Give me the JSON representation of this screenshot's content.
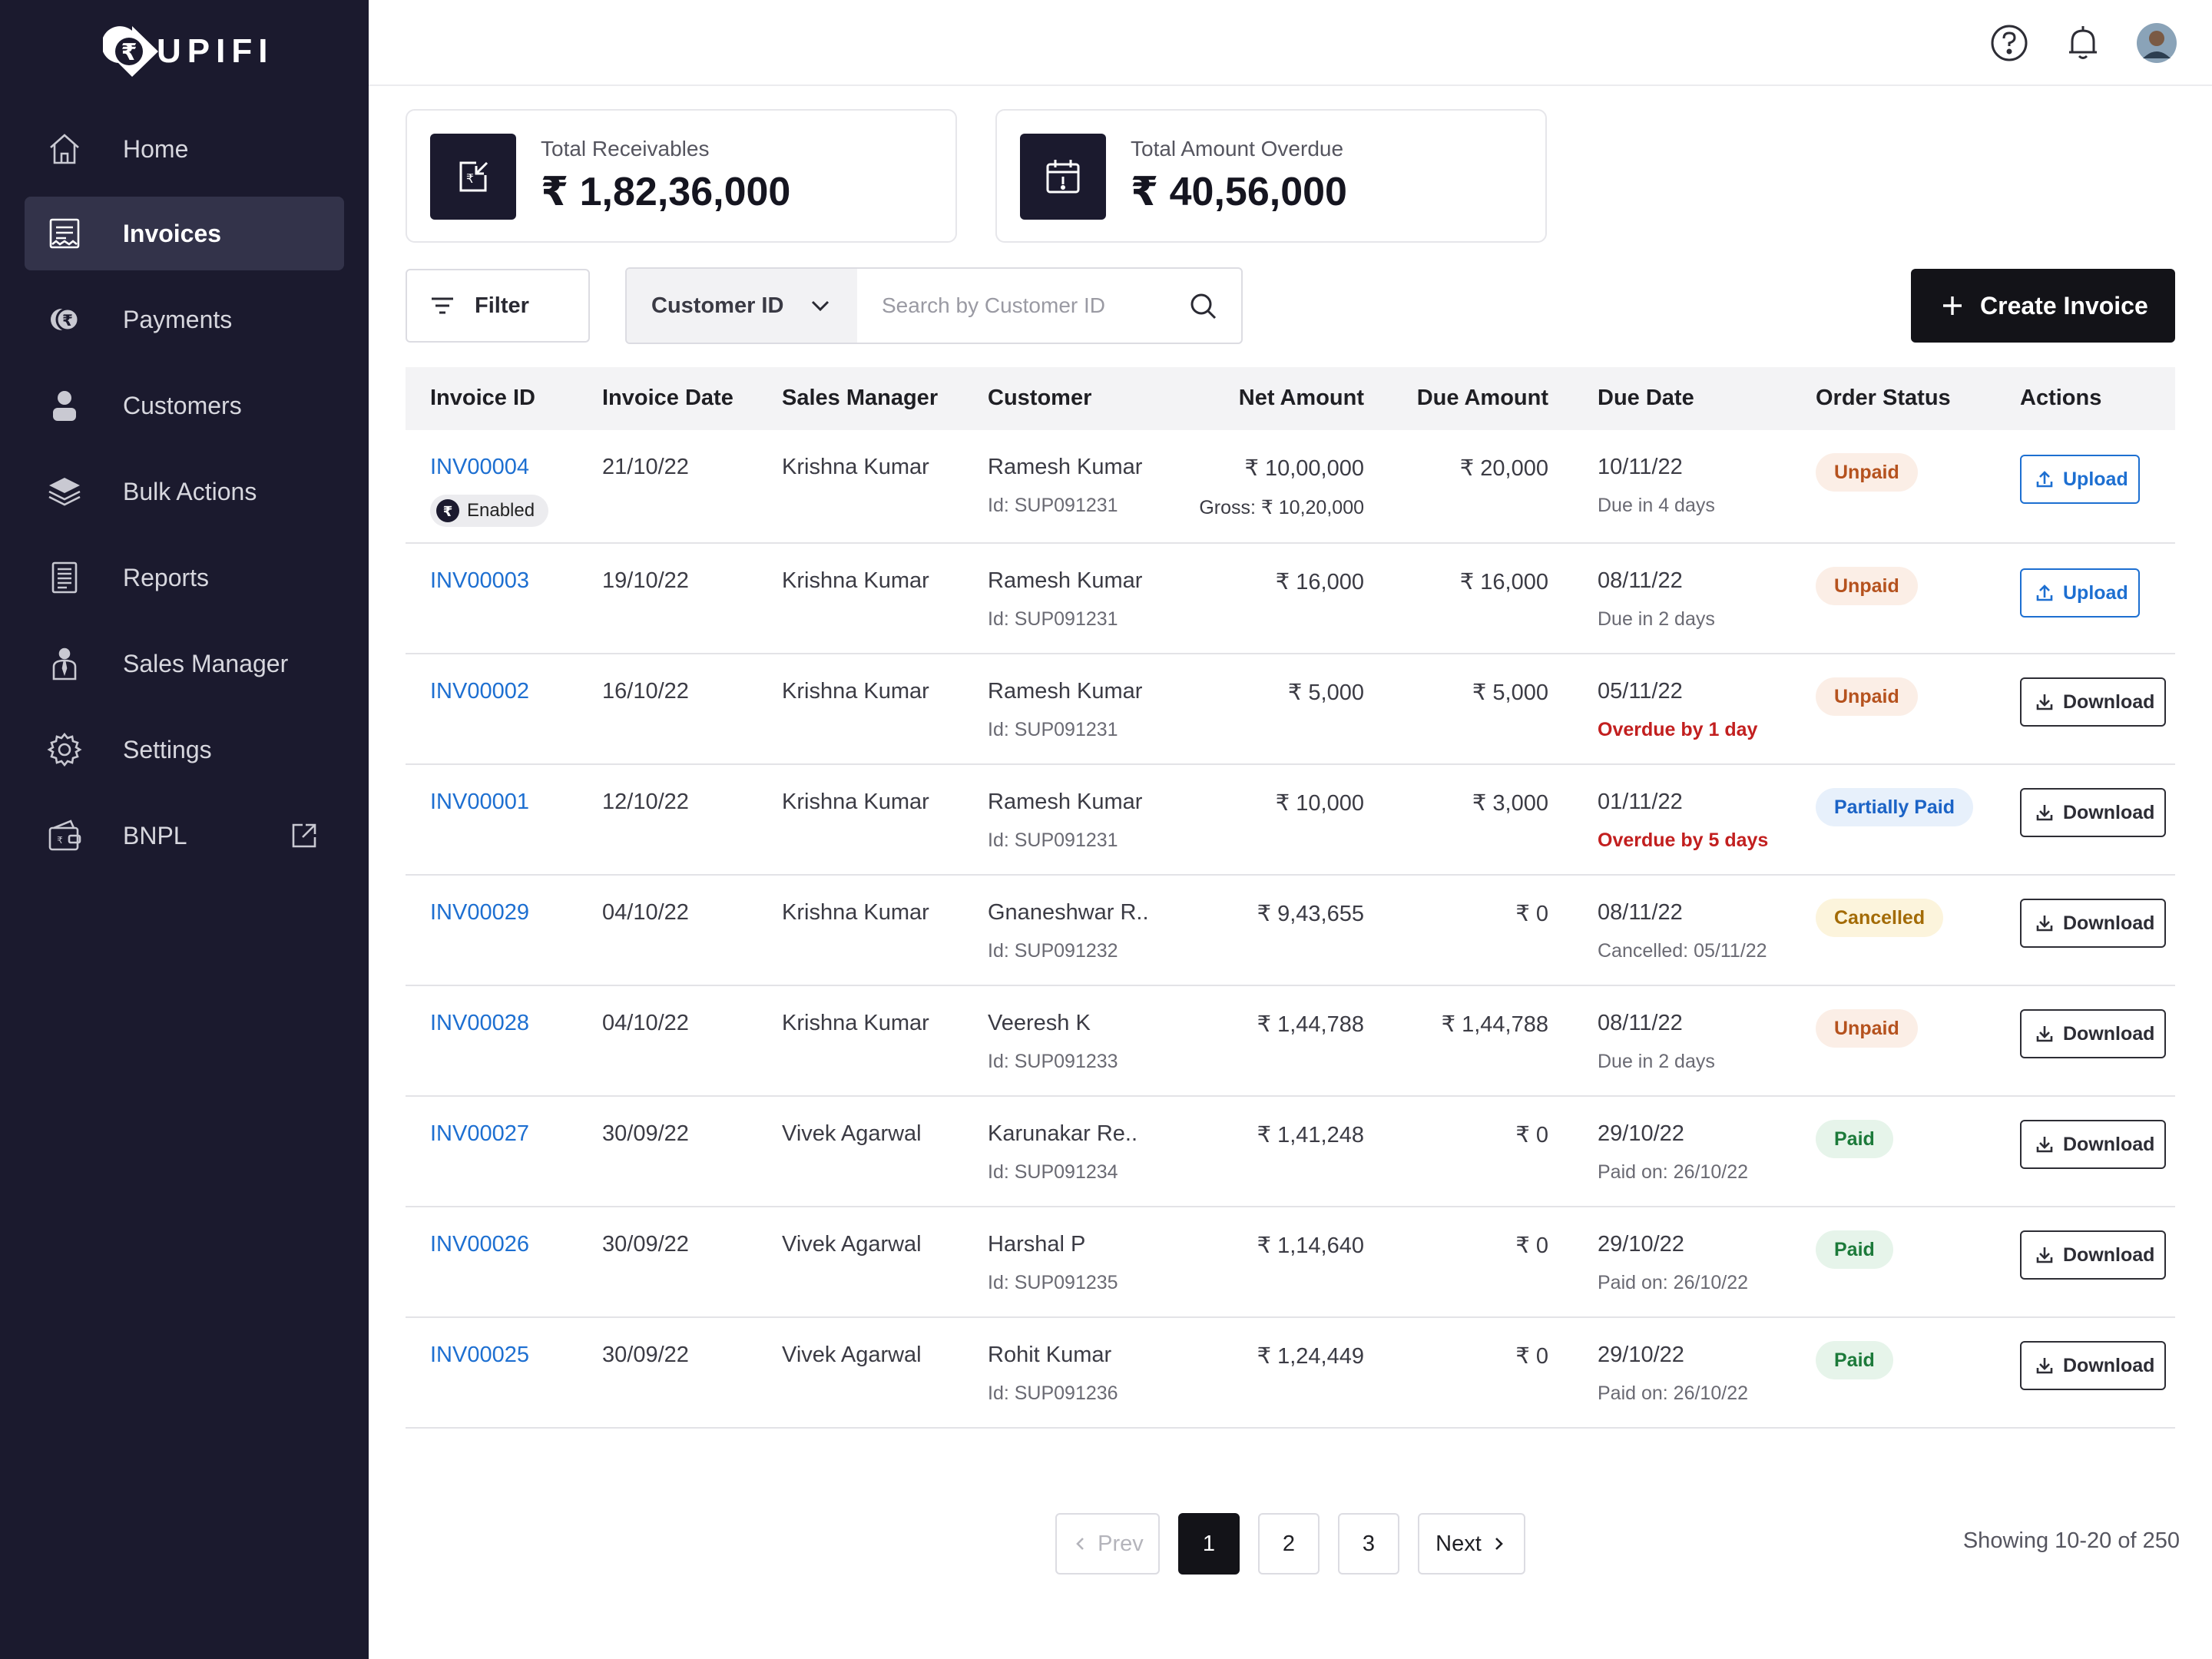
{
  "brand": {
    "name": "UPIFI"
  },
  "sidebar": {
    "items": [
      {
        "label": "Home",
        "icon": "home-icon"
      },
      {
        "label": "Invoices",
        "icon": "invoice-icon",
        "active": true
      },
      {
        "label": "Payments",
        "icon": "rupee-coin-icon"
      },
      {
        "label": "Customers",
        "icon": "user-icon"
      },
      {
        "label": "Bulk Actions",
        "icon": "layers-icon"
      },
      {
        "label": "Reports",
        "icon": "report-icon"
      },
      {
        "label": "Sales Manager",
        "icon": "manager-icon"
      },
      {
        "label": "Settings",
        "icon": "gear-icon"
      },
      {
        "label": "BNPL",
        "icon": "wallet-icon",
        "external": true
      }
    ]
  },
  "summary": {
    "receivables": {
      "label": "Total Receivables",
      "value": "₹ 1,82,36,000"
    },
    "overdue": {
      "label": "Total Amount Overdue",
      "value": "₹ 40,56,000"
    }
  },
  "toolbar": {
    "filter_label": "Filter",
    "search_field": "Customer ID",
    "search_placeholder": "Search by Customer ID",
    "create_label": "Create Invoice"
  },
  "table": {
    "columns": {
      "invoice_id": "Invoice ID",
      "invoice_date": "Invoice Date",
      "sales_manager": "Sales Manager",
      "customer": "Customer",
      "net_amount": "Net Amount",
      "due_amount": "Due Amount",
      "due_date": "Due Date",
      "order_status": "Order Status",
      "actions": "Actions"
    },
    "rows": [
      {
        "id": "INV00004",
        "badge": "Enabled",
        "date": "21/10/22",
        "manager": "Krishna Kumar",
        "customer": "Ramesh Kumar",
        "customer_id": "Id: SUP091231",
        "net": "₹ 10,00,000",
        "gross": "Gross: ₹ 10,20,000",
        "due": "₹ 20,000",
        "due_date": "10/11/22",
        "due_note": "Due in 4 days",
        "due_note_type": "normal",
        "status": "Unpaid",
        "status_type": "unpaid",
        "action": "Upload",
        "action_type": "upload"
      },
      {
        "id": "INV00003",
        "date": "19/10/22",
        "manager": "Krishna Kumar",
        "customer": "Ramesh Kumar",
        "customer_id": "Id: SUP091231",
        "net": "₹ 16,000",
        "due": "₹ 16,000",
        "due_date": "08/11/22",
        "due_note": "Due in 2 days",
        "due_note_type": "normal",
        "status": "Unpaid",
        "status_type": "unpaid",
        "action": "Upload",
        "action_type": "upload"
      },
      {
        "id": "INV00002",
        "date": "16/10/22",
        "manager": "Krishna Kumar",
        "customer": "Ramesh Kumar",
        "customer_id": "Id: SUP091231",
        "net": "₹ 5,000",
        "due": "₹ 5,000",
        "due_date": "05/11/22",
        "due_note": "Overdue by 1 day",
        "due_note_type": "overdue",
        "status": "Unpaid",
        "status_type": "unpaid",
        "action": "Download",
        "action_type": "download"
      },
      {
        "id": "INV00001",
        "date": "12/10/22",
        "manager": "Krishna Kumar",
        "customer": "Ramesh Kumar",
        "customer_id": "Id: SUP091231",
        "net": "₹ 10,000",
        "due": "₹ 3,000",
        "due_date": "01/11/22",
        "due_note": "Overdue by 5 days",
        "due_note_type": "overdue",
        "status": "Partially Paid",
        "status_type": "partial",
        "action": "Download",
        "action_type": "download"
      },
      {
        "id": "INV00029",
        "date": "04/10/22",
        "manager": "Krishna Kumar",
        "customer": "Gnaneshwar R..",
        "customer_id": "Id: SUP091232",
        "net": "₹ 9,43,655",
        "due": "₹ 0",
        "due_date": "08/11/22",
        "due_note": "Cancelled: 05/11/22",
        "due_note_type": "normal",
        "status": "Cancelled",
        "status_type": "cancelled",
        "action": "Download",
        "action_type": "download"
      },
      {
        "id": "INV00028",
        "date": "04/10/22",
        "manager": "Krishna Kumar",
        "customer": "Veeresh K",
        "customer_id": "Id: SUP091233",
        "net": "₹ 1,44,788",
        "due": "₹ 1,44,788",
        "due_date": "08/11/22",
        "due_note": "Due in 2 days",
        "due_note_type": "normal",
        "status": "Unpaid",
        "status_type": "unpaid",
        "action": "Download",
        "action_type": "download"
      },
      {
        "id": "INV00027",
        "date": "30/09/22",
        "manager": "Vivek Agarwal",
        "customer": "Karunakar Re..",
        "customer_id": "Id: SUP091234",
        "net": "₹ 1,41,248",
        "due": "₹ 0",
        "due_date": "29/10/22",
        "due_note": "Paid on: 26/10/22",
        "due_note_type": "normal",
        "status": "Paid",
        "status_type": "paid",
        "action": "Download",
        "action_type": "download"
      },
      {
        "id": "INV00026",
        "date": "30/09/22",
        "manager": "Vivek Agarwal",
        "customer": "Harshal P",
        "customer_id": "Id: SUP091235",
        "net": "₹ 1,14,640",
        "due": "₹ 0",
        "due_date": "29/10/22",
        "due_note": "Paid on: 26/10/22",
        "due_note_type": "normal",
        "status": "Paid",
        "status_type": "paid",
        "action": "Download",
        "action_type": "download"
      },
      {
        "id": "INV00025",
        "date": "30/09/22",
        "manager": "Vivek Agarwal",
        "customer": "Rohit Kumar",
        "customer_id": "Id: SUP091236",
        "net": "₹ 1,24,449",
        "due": "₹ 0",
        "due_date": "29/10/22",
        "due_note": "Paid on: 26/10/22",
        "due_note_type": "normal",
        "status": "Paid",
        "status_type": "paid",
        "action": "Download",
        "action_type": "download"
      }
    ]
  },
  "pagination": {
    "prev": "Prev",
    "next": "Next",
    "pages": [
      "1",
      "2",
      "3"
    ],
    "current": "1",
    "showing": "Showing 10-20 of 250"
  },
  "colors": {
    "sidebar_bg": "#1b1a2e",
    "link": "#1d6fd1",
    "overdue": "#c21f1f",
    "primary_button": "#131318"
  }
}
